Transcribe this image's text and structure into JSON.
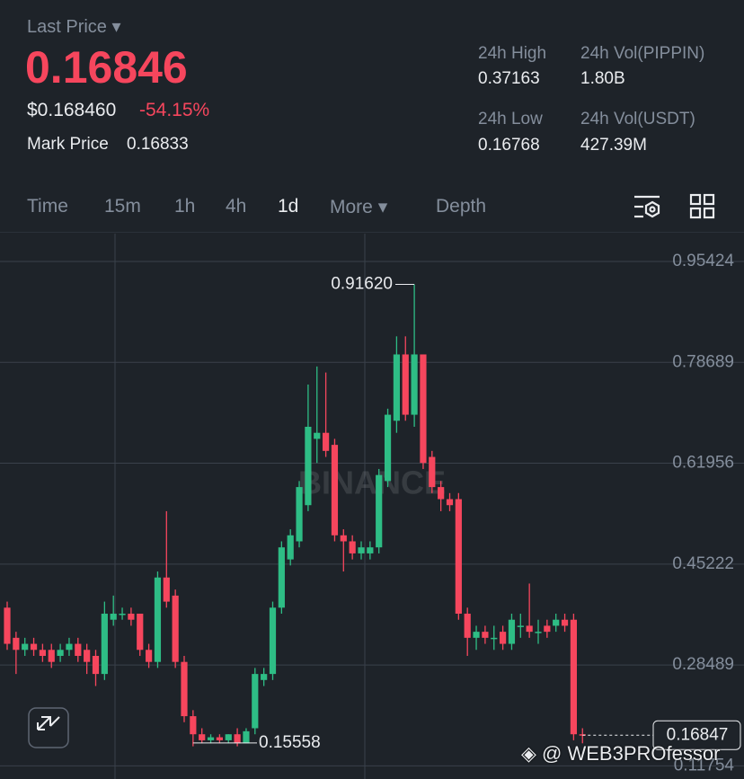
{
  "header": {
    "last_price_label": "Last Price",
    "last_price": "0.16846",
    "usd_price": "$0.168460",
    "change": "-54.15%",
    "mark_price_label": "Mark Price",
    "mark_price": "0.16833",
    "stats": [
      {
        "label": "24h High",
        "value": "0.37163"
      },
      {
        "label": "24h Vol(PIPPIN)",
        "value": "1.80B"
      },
      {
        "label": "24h Low",
        "value": "0.16768"
      },
      {
        "label": "24h Vol(USDT)",
        "value": "427.39M"
      }
    ]
  },
  "tabs": [
    "Time",
    "15m",
    "1h",
    "4h",
    "1d",
    "More",
    "Depth"
  ],
  "watermark": "BINANCE",
  "credit": "@ WEB3PROfessor",
  "chart_data": {
    "type": "candlestick",
    "up_color": "#2ebd85",
    "down_color": "#f6465d",
    "grid": true,
    "ylim": [
      0.0958,
      1.0004
    ],
    "yticks": [
      0.95424,
      0.78689,
      0.61956,
      0.45222,
      0.28489,
      0.11754
    ],
    "open": [
      0.38,
      0.33,
      0.31,
      0.32,
      0.31,
      0.31,
      0.3,
      0.31,
      0.32,
      0.31,
      0.3,
      0.27,
      0.36,
      0.37,
      0.37,
      0.37,
      0.31,
      0.29,
      0.43,
      0.4,
      0.29,
      0.2,
      0.17,
      0.16,
      0.165,
      0.16,
      0.17,
      0.155,
      0.18,
      0.26,
      0.27,
      0.38,
      0.46,
      0.49,
      0.55,
      0.66,
      0.67,
      0.65,
      0.5,
      0.49,
      0.47,
      0.47,
      0.48,
      0.59,
      0.69,
      0.8,
      0.7,
      0.8,
      0.63,
      0.58,
      0.56,
      0.56,
      0.37,
      0.33,
      0.34,
      0.33,
      0.34,
      0.32,
      0.35,
      0.35,
      0.34,
      0.35,
      0.35,
      0.36,
      0.36,
      0.17
    ],
    "high": [
      0.39,
      0.34,
      0.33,
      0.33,
      0.32,
      0.32,
      0.32,
      0.33,
      0.33,
      0.32,
      0.31,
      0.39,
      0.4,
      0.38,
      0.38,
      0.37,
      0.32,
      0.44,
      0.54,
      0.41,
      0.3,
      0.21,
      0.18,
      0.17,
      0.17,
      0.17,
      0.18,
      0.18,
      0.28,
      0.28,
      0.39,
      0.49,
      0.51,
      0.59,
      0.75,
      0.78,
      0.77,
      0.66,
      0.51,
      0.5,
      0.49,
      0.49,
      0.61,
      0.71,
      0.83,
      0.83,
      0.9162,
      0.8,
      0.64,
      0.59,
      0.57,
      0.57,
      0.38,
      0.35,
      0.35,
      0.35,
      0.35,
      0.37,
      0.37,
      0.42,
      0.36,
      0.36,
      0.37,
      0.37,
      0.37,
      0.18
    ],
    "low": [
      0.31,
      0.27,
      0.3,
      0.3,
      0.29,
      0.28,
      0.29,
      0.3,
      0.29,
      0.27,
      0.25,
      0.26,
      0.35,
      0.36,
      0.35,
      0.3,
      0.28,
      0.28,
      0.38,
      0.28,
      0.19,
      0.15,
      0.155,
      0.155,
      0.155,
      0.155,
      0.15,
      0.15558,
      0.17,
      0.25,
      0.26,
      0.37,
      0.45,
      0.48,
      0.54,
      0.62,
      0.63,
      0.49,
      0.44,
      0.46,
      0.46,
      0.46,
      0.47,
      0.58,
      0.67,
      0.69,
      0.68,
      0.61,
      0.57,
      0.54,
      0.54,
      0.36,
      0.3,
      0.31,
      0.32,
      0.31,
      0.31,
      0.31,
      0.33,
      0.33,
      0.32,
      0.33,
      0.34,
      0.34,
      0.16,
      0.155
    ],
    "close": [
      0.32,
      0.31,
      0.32,
      0.31,
      0.3,
      0.29,
      0.31,
      0.32,
      0.3,
      0.29,
      0.27,
      0.37,
      0.37,
      0.37,
      0.36,
      0.31,
      0.29,
      0.43,
      0.39,
      0.29,
      0.2,
      0.17,
      0.16,
      0.165,
      0.16,
      0.17,
      0.155,
      0.175,
      0.27,
      0.27,
      0.38,
      0.48,
      0.5,
      0.58,
      0.68,
      0.67,
      0.64,
      0.5,
      0.49,
      0.47,
      0.48,
      0.48,
      0.6,
      0.7,
      0.8,
      0.7,
      0.8,
      0.62,
      0.58,
      0.56,
      0.55,
      0.37,
      0.33,
      0.34,
      0.33,
      0.33,
      0.32,
      0.36,
      0.35,
      0.34,
      0.34,
      0.34,
      0.36,
      0.35,
      0.17,
      0.16847
    ],
    "annotations": {
      "high": {
        "value": 0.9162,
        "label": "0.91620"
      },
      "low": {
        "value": 0.15558,
        "label": "0.15558"
      },
      "last": {
        "value": 0.16847,
        "label": "0.16847"
      }
    }
  }
}
